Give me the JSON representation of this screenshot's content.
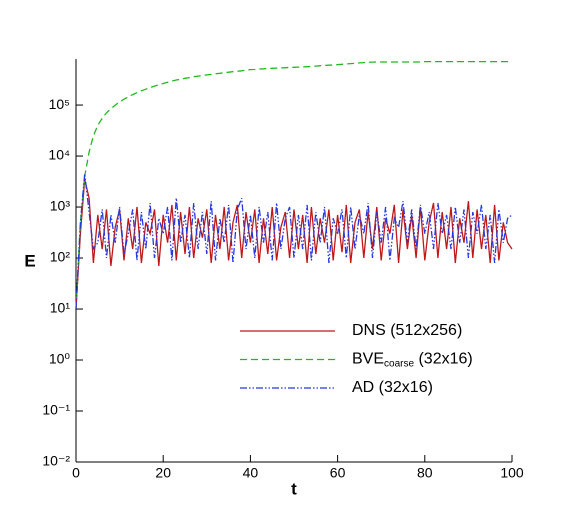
{
  "chart_data": {
    "type": "line",
    "xlabel": "t",
    "ylabel": "E",
    "log_y": true,
    "xlim": [
      0,
      100
    ],
    "ylim": [
      0.01,
      800000
    ],
    "xticks": [
      0,
      20,
      40,
      60,
      80,
      100
    ],
    "yticks": [
      {
        "value": 0.01,
        "label": "10⁻²"
      },
      {
        "value": 0.1,
        "label": "10⁻¹"
      },
      {
        "value": 1,
        "label": "10⁰"
      },
      {
        "value": 10,
        "label": "10¹"
      },
      {
        "value": 100,
        "label": "10²"
      },
      {
        "value": 1000,
        "label": "10³"
      },
      {
        "value": 10000,
        "label": "10⁴"
      },
      {
        "value": 100000,
        "label": "10⁵"
      }
    ],
    "x": [
      0,
      1,
      2,
      3,
      4,
      5,
      6,
      7,
      8,
      9,
      10,
      11,
      12,
      13,
      14,
      15,
      16,
      17,
      18,
      19,
      20,
      21,
      22,
      23,
      24,
      25,
      26,
      27,
      28,
      29,
      30,
      31,
      32,
      33,
      34,
      35,
      36,
      37,
      38,
      39,
      40,
      41,
      42,
      43,
      44,
      45,
      46,
      47,
      48,
      49,
      50,
      51,
      52,
      53,
      54,
      55,
      56,
      57,
      58,
      59,
      60,
      61,
      62,
      63,
      64,
      65,
      66,
      67,
      68,
      69,
      70,
      71,
      72,
      73,
      74,
      75,
      76,
      77,
      78,
      79,
      80,
      81,
      82,
      83,
      84,
      85,
      86,
      87,
      88,
      89,
      90,
      91,
      92,
      93,
      94,
      95,
      96,
      97,
      98,
      99,
      100
    ],
    "series": [
      {
        "name": "DNS (512x256)",
        "color": "#c01818",
        "dash": "solid",
        "values": [
          10,
          300,
          3500,
          1500,
          80,
          700,
          150,
          900,
          70,
          400,
          900,
          90,
          600,
          150,
          1000,
          80,
          500,
          300,
          900,
          70,
          700,
          200,
          1100,
          90,
          800,
          120,
          1000,
          100,
          600,
          250,
          900,
          80,
          700,
          150,
          1000,
          90,
          500,
          1100,
          100,
          800,
          200,
          900,
          80,
          600,
          120,
          1000,
          90,
          400,
          800,
          100,
          900,
          150,
          700,
          80,
          1000,
          120,
          600,
          200,
          900,
          90,
          700,
          130,
          1100,
          80,
          500,
          900,
          100,
          800,
          150,
          1000,
          90,
          600,
          300,
          1100,
          80,
          900,
          150,
          700,
          100,
          1000,
          90,
          500,
          1200,
          100,
          800,
          150,
          1000,
          80,
          600,
          200,
          1300,
          100,
          900,
          150,
          700,
          80,
          1100,
          90,
          500,
          200,
          150
        ]
      },
      {
        "name": "BVE",
        "subscript": "coarse",
        "suffix": " (32x16)",
        "color": "#22b822",
        "dash": "dashed",
        "values": [
          10,
          500,
          4000,
          12000,
          25000,
          40000,
          55000,
          70000,
          85000,
          100000,
          115000,
          130000,
          145000,
          160000,
          175000,
          190000,
          205000,
          220000,
          235000,
          250000,
          265000,
          280000,
          295000,
          310000,
          320000,
          335000,
          345000,
          360000,
          370000,
          380000,
          390000,
          400000,
          410000,
          420000,
          430000,
          440000,
          450000,
          460000,
          470000,
          485000,
          495000,
          500000,
          510000,
          515000,
          520000,
          525000,
          530000,
          535000,
          540000,
          545000,
          550000,
          555000,
          560000,
          565000,
          570000,
          580000,
          590000,
          600000,
          605000,
          610000,
          620000,
          630000,
          640000,
          650000,
          660000,
          670000,
          680000,
          690000,
          695000,
          700000,
          700000,
          700000,
          700000,
          700000,
          700000,
          700000,
          700000,
          700000,
          700000,
          700000,
          710000,
          710000,
          710000,
          710000,
          710000,
          710000,
          710000,
          710000,
          710000,
          710000,
          710000,
          710000,
          710000,
          710000,
          710000,
          710000,
          710000,
          710000,
          710000,
          710000,
          710000
        ]
      },
      {
        "name": "AD (32x16)",
        "color": "#2438e0",
        "dash": "dashdotdot",
        "values": [
          10,
          500,
          4500,
          800,
          150,
          200,
          900,
          100,
          700,
          200,
          1000,
          120,
          300,
          900,
          90,
          800,
          150,
          1200,
          100,
          600,
          300,
          1000,
          90,
          1500,
          200,
          700,
          100,
          1200,
          150,
          800,
          120,
          1300,
          90,
          600,
          200,
          1100,
          80,
          900,
          1500,
          150,
          700,
          100,
          1000,
          200,
          800,
          90,
          1200,
          150,
          600,
          1000,
          100,
          700,
          150,
          1100,
          90,
          800,
          200,
          1000,
          80,
          600,
          300,
          900,
          100,
          1000,
          150,
          700,
          300,
          1200,
          100,
          800,
          200,
          1000,
          90,
          600,
          400,
          1300,
          200,
          900,
          150,
          1100,
          300,
          800,
          150,
          1200,
          300,
          700,
          150,
          1000,
          200,
          900,
          100,
          800,
          300,
          1100,
          150,
          700,
          80,
          900,
          200,
          600,
          700
        ]
      }
    ]
  }
}
